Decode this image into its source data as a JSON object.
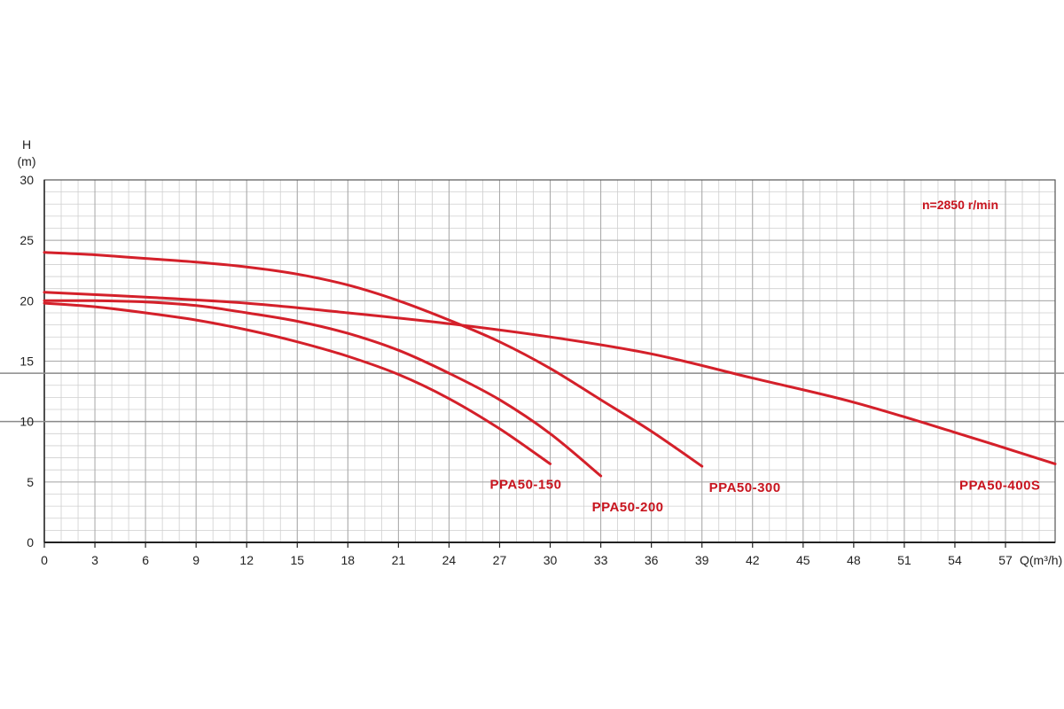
{
  "chart_data": {
    "type": "line",
    "title": "",
    "annotation": "n=2850 r/min",
    "ylabel_line1": "H",
    "ylabel_line2": "(m)",
    "xlabel": "Q(m³/h)",
    "xlim": [
      0,
      60
    ],
    "ylim": [
      0,
      30
    ],
    "xticks": [
      0,
      3,
      6,
      9,
      12,
      15,
      18,
      21,
      24,
      27,
      30,
      33,
      36,
      39,
      42,
      45,
      48,
      51,
      54,
      57
    ],
    "yticks": [
      0,
      5,
      10,
      15,
      20,
      25,
      30
    ],
    "grid": true,
    "curve_color": "#d4202a",
    "series": [
      {
        "name": "PPA50-150",
        "x": [
          0,
          3,
          6,
          9,
          12,
          15,
          18,
          21,
          24,
          27,
          30
        ],
        "y": [
          19.8,
          19.5,
          19.0,
          18.4,
          17.6,
          16.6,
          15.4,
          13.9,
          11.9,
          9.4,
          6.5
        ]
      },
      {
        "name": "PPA50-200",
        "x": [
          0,
          3,
          6,
          9,
          12,
          15,
          18,
          21,
          24,
          27,
          30,
          33
        ],
        "y": [
          20.0,
          20.0,
          19.9,
          19.6,
          19.0,
          18.3,
          17.3,
          15.9,
          14.0,
          11.8,
          9.0,
          5.5
        ]
      },
      {
        "name": "PPA50-300",
        "x": [
          0,
          3,
          6,
          9,
          12,
          15,
          18,
          21,
          24,
          27,
          30,
          33,
          36,
          39
        ],
        "y": [
          24.0,
          23.8,
          23.5,
          23.2,
          22.8,
          22.2,
          21.3,
          20.0,
          18.4,
          16.6,
          14.4,
          11.8,
          9.2,
          6.3
        ]
      },
      {
        "name": "PPA50-400S",
        "x": [
          0,
          6,
          12,
          18,
          24,
          30,
          36,
          42,
          48,
          54,
          60
        ],
        "y": [
          20.7,
          20.3,
          19.8,
          19.0,
          18.1,
          17.0,
          15.6,
          13.6,
          11.6,
          9.1,
          6.5
        ]
      }
    ]
  }
}
